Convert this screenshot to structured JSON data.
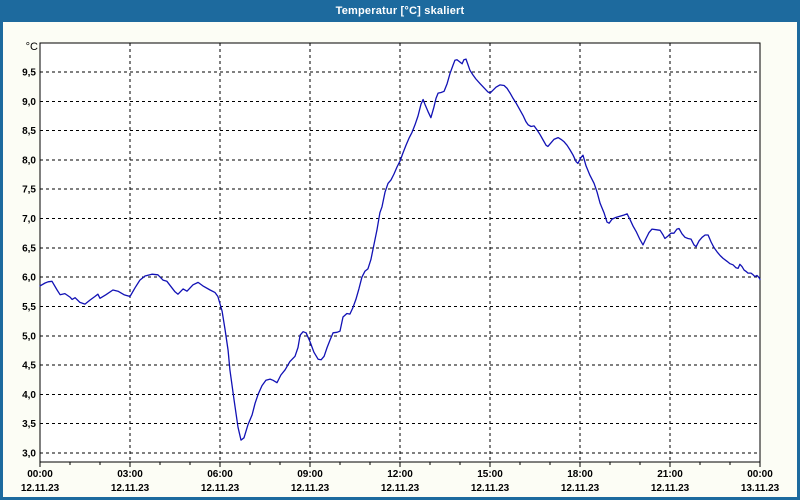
{
  "window": {
    "title": "Temperatur [°C] skaliert",
    "titlebar_color": "#1d6a9e",
    "border_color": "#1d6a9e",
    "background_color": "#fcfdf5",
    "plot_background": "#ffffff",
    "title_text_color": "#ffffff",
    "label_text_color": "#000000"
  },
  "chart_data": {
    "type": "line",
    "title": "Temperatur [°C] skaliert",
    "y_unit_label": "°C",
    "xlabel": "",
    "ylabel": "°C",
    "x_range_hours": [
      0,
      24
    ],
    "ylim": [
      2.85,
      10.0
    ],
    "grid": "dashed",
    "grid_color": "#000000",
    "legend": "none",
    "line_color": "#1212b5",
    "y_ticks": [
      {
        "value": 9.5,
        "label": "9,5"
      },
      {
        "value": 9.0,
        "label": "9,0"
      },
      {
        "value": 8.5,
        "label": "8,5"
      },
      {
        "value": 8.0,
        "label": "8,0"
      },
      {
        "value": 7.5,
        "label": "7,5"
      },
      {
        "value": 7.0,
        "label": "7,0"
      },
      {
        "value": 6.5,
        "label": "6,5"
      },
      {
        "value": 6.0,
        "label": "6,0"
      },
      {
        "value": 5.5,
        "label": "5,5"
      },
      {
        "value": 5.0,
        "label": "5,0"
      },
      {
        "value": 4.5,
        "label": "4,5"
      },
      {
        "value": 4.0,
        "label": "4,0"
      },
      {
        "value": 3.5,
        "label": "3,5"
      },
      {
        "value": 3.0,
        "label": "3,0"
      }
    ],
    "x_major_ticks": [
      {
        "hour": 0,
        "time": "00:00",
        "date": "12.11.23"
      },
      {
        "hour": 3,
        "time": "03:00",
        "date": "12.11.23"
      },
      {
        "hour": 6,
        "time": "06:00",
        "date": "12.11.23"
      },
      {
        "hour": 9,
        "time": "09:00",
        "date": "12.11.23"
      },
      {
        "hour": 12,
        "time": "12:00",
        "date": "12.11.23"
      },
      {
        "hour": 15,
        "time": "15:00",
        "date": "12.11.23"
      },
      {
        "hour": 18,
        "time": "18:00",
        "date": "12.11.23"
      },
      {
        "hour": 21,
        "time": "21:00",
        "date": "12.11.23"
      },
      {
        "hour": 24,
        "time": "00:00",
        "date": "13.11.23"
      }
    ],
    "x_minor_tick_interval_hours": 1,
    "series": [
      {
        "name": "Temperatur",
        "points": [
          [
            0.0,
            5.85
          ],
          [
            0.17,
            5.9
          ],
          [
            0.27,
            5.92
          ],
          [
            0.4,
            5.93
          ],
          [
            0.57,
            5.78
          ],
          [
            0.67,
            5.7
          ],
          [
            0.83,
            5.72
          ],
          [
            1.0,
            5.66
          ],
          [
            1.07,
            5.62
          ],
          [
            1.17,
            5.65
          ],
          [
            1.33,
            5.57
          ],
          [
            1.5,
            5.54
          ],
          [
            1.67,
            5.61
          ],
          [
            1.83,
            5.67
          ],
          [
            1.93,
            5.71
          ],
          [
            2.0,
            5.64
          ],
          [
            2.2,
            5.7
          ],
          [
            2.43,
            5.78
          ],
          [
            2.6,
            5.76
          ],
          [
            2.8,
            5.7
          ],
          [
            3.0,
            5.67
          ],
          [
            3.17,
            5.82
          ],
          [
            3.33,
            5.95
          ],
          [
            3.5,
            6.02
          ],
          [
            3.73,
            6.05
          ],
          [
            3.93,
            6.04
          ],
          [
            4.1,
            5.95
          ],
          [
            4.23,
            5.93
          ],
          [
            4.5,
            5.75
          ],
          [
            4.6,
            5.71
          ],
          [
            4.77,
            5.8
          ],
          [
            4.9,
            5.76
          ],
          [
            5.1,
            5.87
          ],
          [
            5.27,
            5.91
          ],
          [
            5.43,
            5.85
          ],
          [
            5.67,
            5.78
          ],
          [
            5.83,
            5.74
          ],
          [
            5.93,
            5.67
          ],
          [
            6.07,
            5.42
          ],
          [
            6.17,
            5.1
          ],
          [
            6.27,
            4.75
          ],
          [
            6.33,
            4.42
          ],
          [
            6.47,
            3.9
          ],
          [
            6.6,
            3.44
          ],
          [
            6.7,
            3.22
          ],
          [
            6.8,
            3.26
          ],
          [
            6.93,
            3.48
          ],
          [
            7.07,
            3.65
          ],
          [
            7.17,
            3.85
          ],
          [
            7.27,
            4.0
          ],
          [
            7.4,
            4.15
          ],
          [
            7.53,
            4.24
          ],
          [
            7.67,
            4.26
          ],
          [
            7.77,
            4.24
          ],
          [
            7.9,
            4.2
          ],
          [
            8.03,
            4.33
          ],
          [
            8.17,
            4.42
          ],
          [
            8.33,
            4.56
          ],
          [
            8.5,
            4.65
          ],
          [
            8.6,
            4.8
          ],
          [
            8.67,
            5.01
          ],
          [
            8.77,
            5.07
          ],
          [
            8.87,
            5.05
          ],
          [
            9.0,
            4.9
          ],
          [
            9.13,
            4.72
          ],
          [
            9.27,
            4.6
          ],
          [
            9.37,
            4.59
          ],
          [
            9.47,
            4.65
          ],
          [
            9.57,
            4.8
          ],
          [
            9.67,
            4.93
          ],
          [
            9.77,
            5.05
          ],
          [
            9.9,
            5.06
          ],
          [
            10.0,
            5.08
          ],
          [
            10.1,
            5.32
          ],
          [
            10.23,
            5.38
          ],
          [
            10.33,
            5.37
          ],
          [
            10.43,
            5.48
          ],
          [
            10.53,
            5.62
          ],
          [
            10.63,
            5.8
          ],
          [
            10.73,
            6.0
          ],
          [
            10.83,
            6.1
          ],
          [
            10.93,
            6.14
          ],
          [
            11.03,
            6.3
          ],
          [
            11.13,
            6.55
          ],
          [
            11.23,
            6.8
          ],
          [
            11.33,
            7.1
          ],
          [
            11.4,
            7.2
          ],
          [
            11.5,
            7.45
          ],
          [
            11.6,
            7.6
          ],
          [
            11.7,
            7.66
          ],
          [
            11.8,
            7.76
          ],
          [
            11.9,
            7.88
          ],
          [
            12.0,
            7.98
          ],
          [
            12.1,
            8.12
          ],
          [
            12.2,
            8.25
          ],
          [
            12.3,
            8.37
          ],
          [
            12.4,
            8.47
          ],
          [
            12.5,
            8.6
          ],
          [
            12.6,
            8.75
          ],
          [
            12.7,
            8.95
          ],
          [
            12.77,
            9.03
          ],
          [
            12.83,
            8.95
          ],
          [
            12.93,
            8.83
          ],
          [
            13.03,
            8.72
          ],
          [
            13.13,
            8.9
          ],
          [
            13.2,
            9.05
          ],
          [
            13.27,
            9.14
          ],
          [
            13.37,
            9.15
          ],
          [
            13.47,
            9.17
          ],
          [
            13.57,
            9.3
          ],
          [
            13.67,
            9.48
          ],
          [
            13.77,
            9.62
          ],
          [
            13.83,
            9.7
          ],
          [
            13.9,
            9.71
          ],
          [
            13.97,
            9.68
          ],
          [
            14.07,
            9.64
          ],
          [
            14.13,
            9.71
          ],
          [
            14.2,
            9.72
          ],
          [
            14.27,
            9.62
          ],
          [
            14.33,
            9.53
          ],
          [
            14.43,
            9.45
          ],
          [
            14.53,
            9.38
          ],
          [
            14.67,
            9.3
          ],
          [
            14.8,
            9.23
          ],
          [
            14.93,
            9.16
          ],
          [
            15.0,
            9.14
          ],
          [
            15.1,
            9.19
          ],
          [
            15.2,
            9.24
          ],
          [
            15.33,
            9.28
          ],
          [
            15.47,
            9.27
          ],
          [
            15.57,
            9.22
          ],
          [
            15.67,
            9.14
          ],
          [
            15.77,
            9.05
          ],
          [
            15.87,
            8.97
          ],
          [
            16.0,
            8.85
          ],
          [
            16.1,
            8.76
          ],
          [
            16.2,
            8.65
          ],
          [
            16.27,
            8.6
          ],
          [
            16.37,
            8.57
          ],
          [
            16.47,
            8.58
          ],
          [
            16.57,
            8.51
          ],
          [
            16.67,
            8.43
          ],
          [
            16.77,
            8.34
          ],
          [
            16.87,
            8.25
          ],
          [
            16.93,
            8.23
          ],
          [
            17.03,
            8.29
          ],
          [
            17.13,
            8.35
          ],
          [
            17.27,
            8.38
          ],
          [
            17.37,
            8.35
          ],
          [
            17.47,
            8.31
          ],
          [
            17.57,
            8.25
          ],
          [
            17.67,
            8.17
          ],
          [
            17.77,
            8.08
          ],
          [
            17.87,
            7.97
          ],
          [
            17.93,
            7.94
          ],
          [
            18.03,
            8.04
          ],
          [
            18.1,
            8.08
          ],
          [
            18.2,
            7.9
          ],
          [
            18.33,
            7.74
          ],
          [
            18.47,
            7.6
          ],
          [
            18.57,
            7.45
          ],
          [
            18.67,
            7.26
          ],
          [
            18.8,
            7.1
          ],
          [
            18.9,
            6.94
          ],
          [
            18.97,
            6.92
          ],
          [
            19.07,
            6.99
          ],
          [
            19.2,
            7.02
          ],
          [
            19.33,
            7.04
          ],
          [
            19.47,
            7.06
          ],
          [
            19.57,
            7.08
          ],
          [
            19.67,
            6.98
          ],
          [
            19.77,
            6.87
          ],
          [
            19.87,
            6.78
          ],
          [
            20.0,
            6.64
          ],
          [
            20.1,
            6.55
          ],
          [
            20.2,
            6.66
          ],
          [
            20.3,
            6.76
          ],
          [
            20.4,
            6.82
          ],
          [
            20.53,
            6.81
          ],
          [
            20.67,
            6.8
          ],
          [
            20.77,
            6.72
          ],
          [
            20.83,
            6.66
          ],
          [
            20.93,
            6.7
          ],
          [
            21.03,
            6.75
          ],
          [
            21.13,
            6.75
          ],
          [
            21.23,
            6.82
          ],
          [
            21.3,
            6.83
          ],
          [
            21.4,
            6.74
          ],
          [
            21.5,
            6.68
          ],
          [
            21.6,
            6.66
          ],
          [
            21.7,
            6.65
          ],
          [
            21.8,
            6.55
          ],
          [
            21.87,
            6.52
          ],
          [
            21.97,
            6.62
          ],
          [
            22.07,
            6.68
          ],
          [
            22.17,
            6.72
          ],
          [
            22.27,
            6.72
          ],
          [
            22.37,
            6.6
          ],
          [
            22.47,
            6.5
          ],
          [
            22.57,
            6.43
          ],
          [
            22.67,
            6.37
          ],
          [
            22.77,
            6.32
          ],
          [
            22.9,
            6.27
          ],
          [
            23.0,
            6.23
          ],
          [
            23.1,
            6.21
          ],
          [
            23.2,
            6.16
          ],
          [
            23.27,
            6.15
          ],
          [
            23.33,
            6.22
          ],
          [
            23.4,
            6.18
          ],
          [
            23.47,
            6.12
          ],
          [
            23.53,
            6.1
          ],
          [
            23.6,
            6.07
          ],
          [
            23.7,
            6.07
          ],
          [
            23.77,
            6.04
          ],
          [
            23.83,
            6.01
          ],
          [
            23.9,
            6.03
          ],
          [
            23.97,
            5.99
          ],
          [
            24.0,
            5.96
          ]
        ]
      }
    ]
  }
}
